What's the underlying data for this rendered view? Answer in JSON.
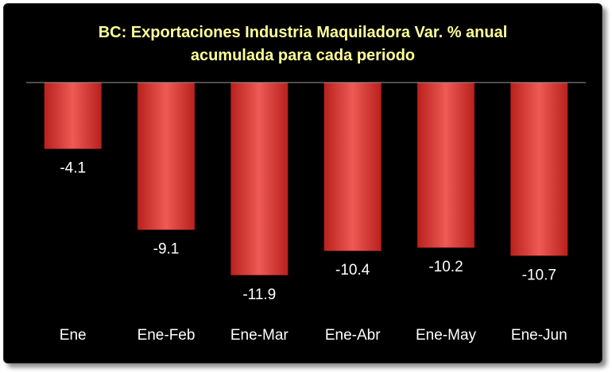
{
  "chart_data": {
    "type": "bar",
    "title_line1": "BC: Exportaciones Industria Maquiladora Var. % anual",
    "title_line2": "acumulada para cada periodo",
    "categories": [
      "Ene",
      "Ene-Feb",
      "Ene-Mar",
      "Ene-Abr",
      "Ene-May",
      "Ene-Jun"
    ],
    "values": [
      -4.1,
      -9.1,
      -11.9,
      -10.4,
      -10.2,
      -10.7
    ],
    "data_labels": [
      "-4.1",
      "-9.1",
      "-11.9",
      "-10.4",
      "-10.2",
      "-10.7"
    ],
    "xlabel": "",
    "ylabel": "",
    "ylim": [
      -13.0,
      0
    ],
    "grid": false,
    "legend": "none",
    "colors": {
      "background": "#000000",
      "title": "#ffff99",
      "bar_light": "#ef5a55",
      "bar_dark": "#b8201c",
      "label": "#ffffff",
      "axis": "#9a9a9a"
    }
  }
}
